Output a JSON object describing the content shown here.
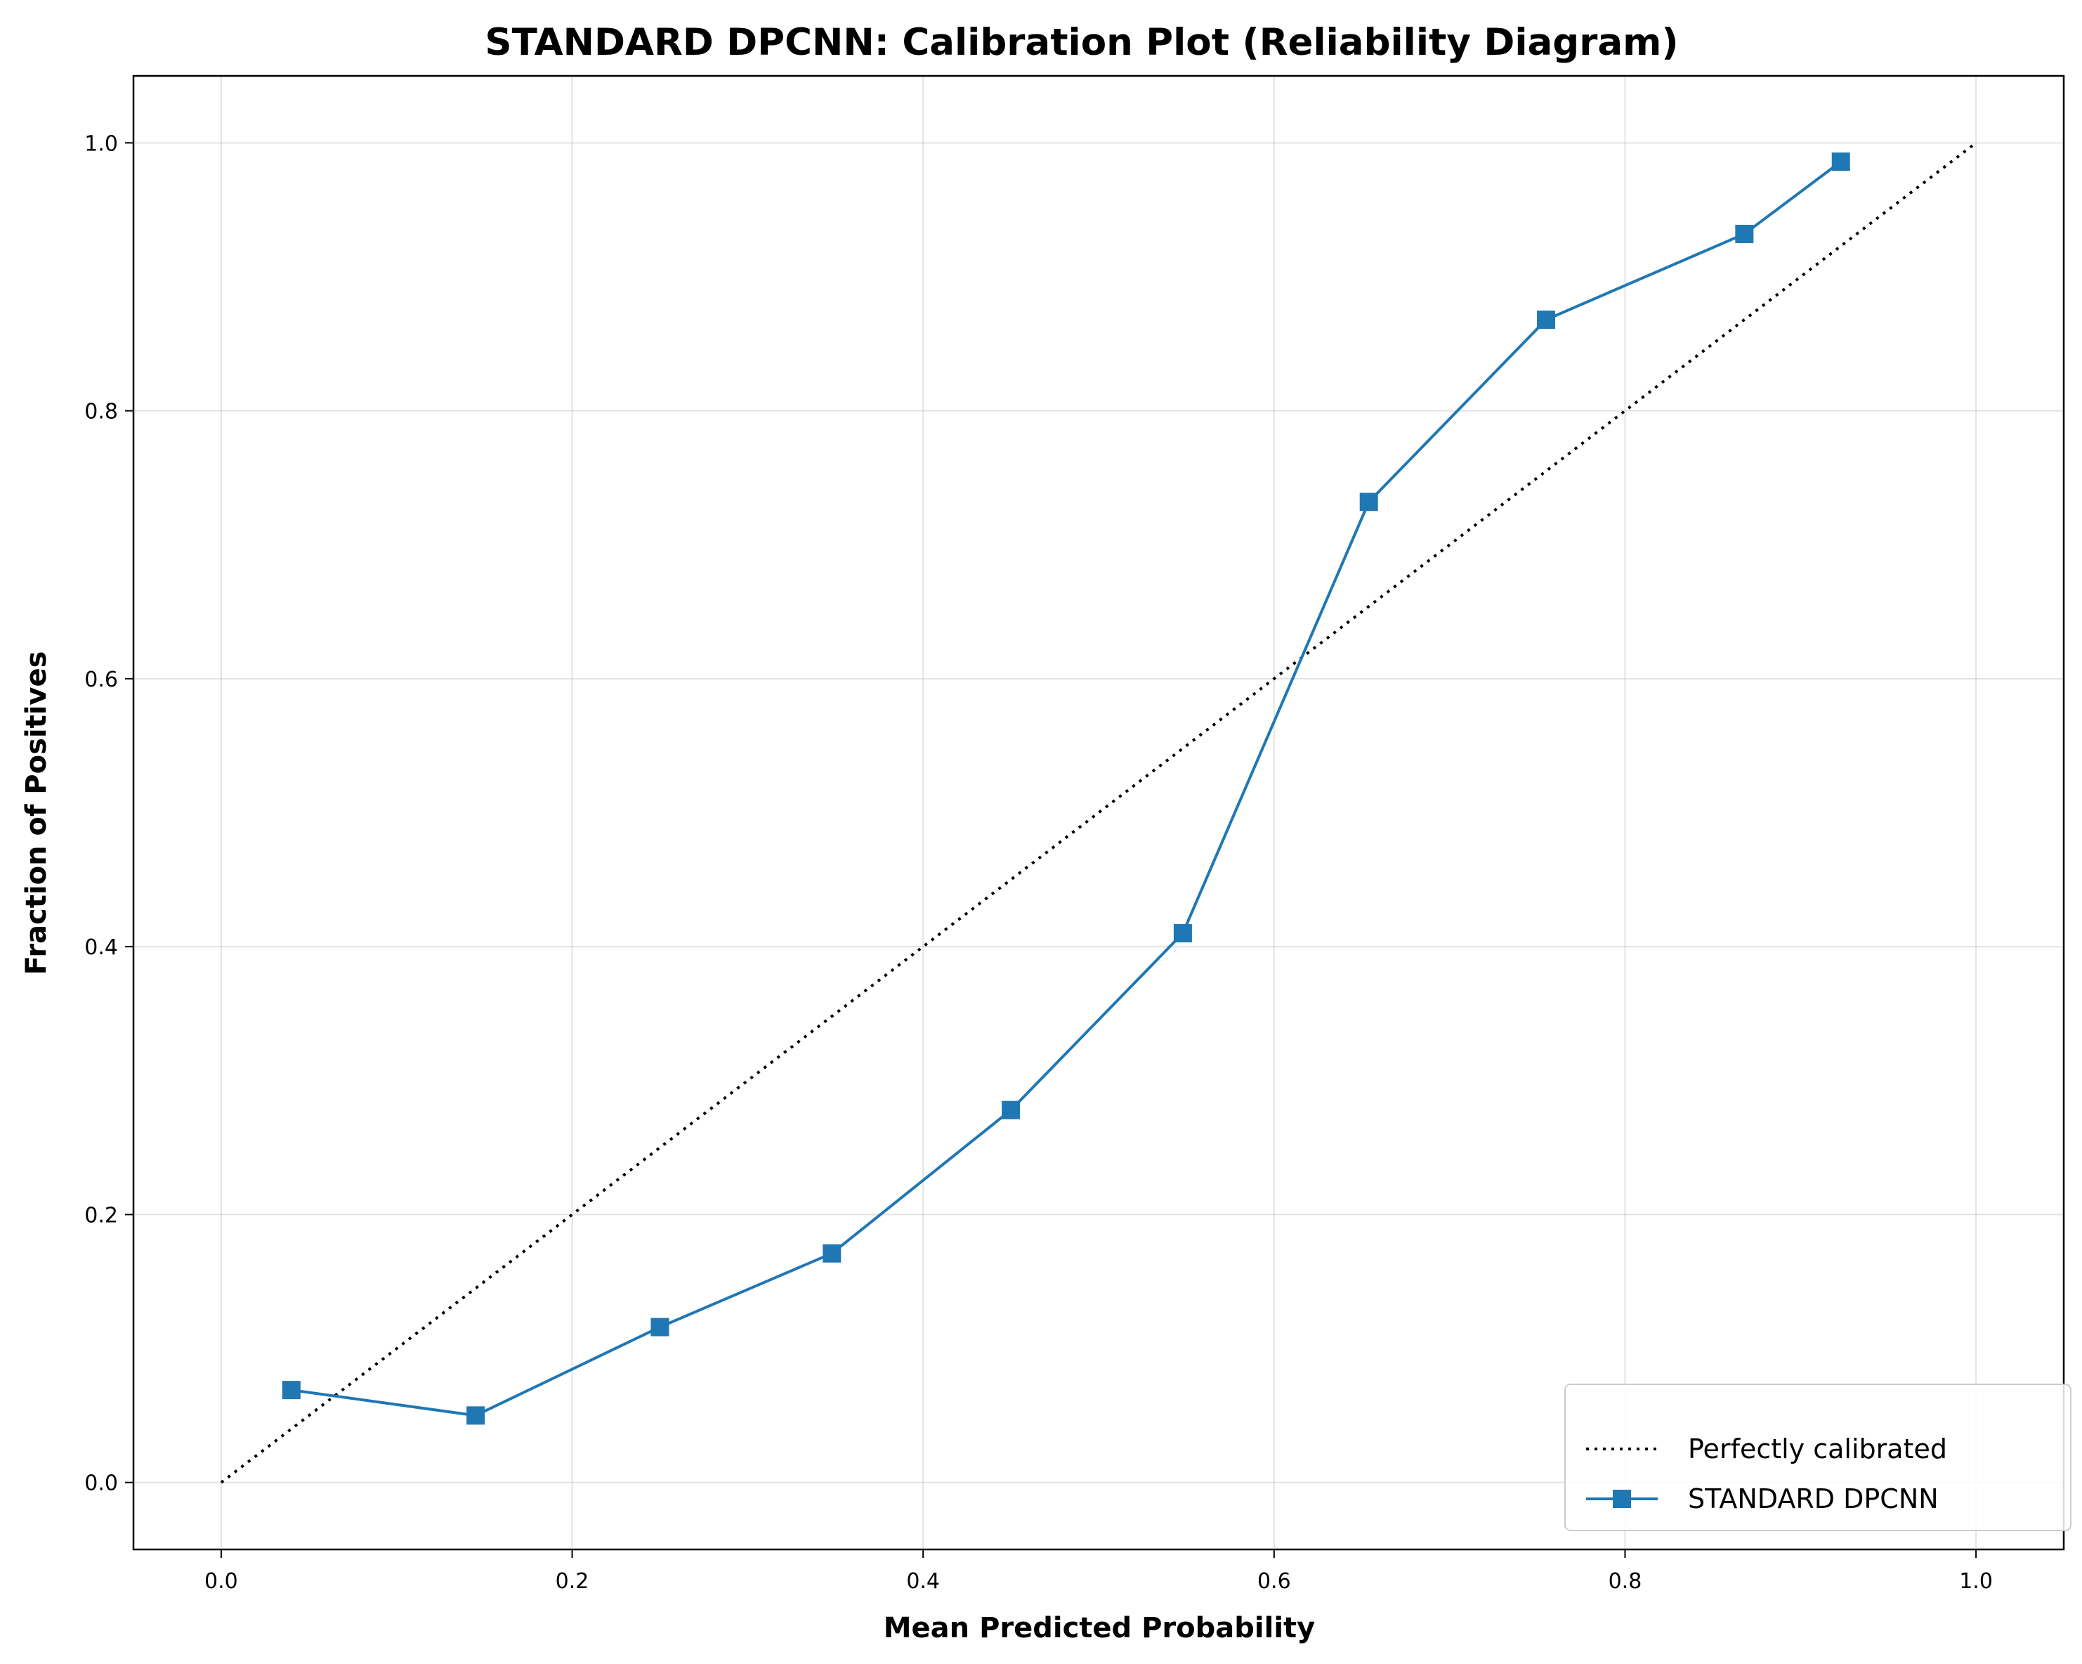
{
  "chart_data": {
    "type": "line",
    "title": "STANDARD DPCNN: Calibration Plot (Reliability Diagram)",
    "xlabel": "Mean Predicted Probability",
    "ylabel": "Fraction of Positives",
    "xlim": [
      -0.05,
      1.05
    ],
    "ylim": [
      -0.05,
      1.05
    ],
    "xticks": [
      "0.0",
      "0.2",
      "0.4",
      "0.6",
      "0.8",
      "1.0"
    ],
    "yticks": [
      "0.0",
      "0.2",
      "0.4",
      "0.6",
      "0.8",
      "1.0"
    ],
    "grid": true,
    "legend_position": "lower-right",
    "series": [
      {
        "name": "Perfectly calibrated",
        "style": "dotted",
        "color": "#000000",
        "x": [
          0.0,
          1.0
        ],
        "y": [
          0.0,
          1.0
        ]
      },
      {
        "name": "STANDARD DPCNN",
        "style": "solid",
        "marker": "square",
        "color": "#1f77b4",
        "x": [
          0.04,
          0.145,
          0.25,
          0.348,
          0.45,
          0.548,
          0.654,
          0.755,
          0.868,
          0.923
        ],
        "y": [
          0.069,
          0.05,
          0.116,
          0.171,
          0.278,
          0.41,
          0.732,
          0.868,
          0.932,
          0.986
        ]
      }
    ]
  }
}
